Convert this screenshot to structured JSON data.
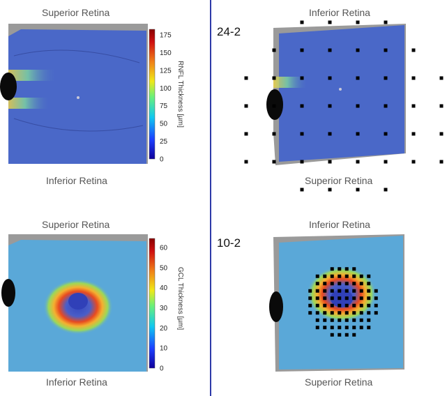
{
  "labels": {
    "top_left_top": "Superior Retina",
    "top_left_bottom": "Inferior Retina",
    "top_right_top": "Inferior Retina",
    "top_right_bottom": "Superior Retina",
    "bottom_left_top": "Superior Retina",
    "bottom_left_bottom": "Inferior Retina",
    "bottom_right_top": "Inferior Retina",
    "bottom_right_bottom": "Superior Retina"
  },
  "test_patterns": {
    "top": "24-2",
    "bottom": "10-2"
  },
  "colorbars": {
    "rnfl": {
      "title": "RNFL Thickness [µm]",
      "ticks": [
        "0",
        "25",
        "50",
        "75",
        "100",
        "125",
        "150",
        "175"
      ]
    },
    "gcl": {
      "title": "GCL Thickness [µm]",
      "ticks": [
        "0",
        "10",
        "20",
        "30",
        "40",
        "50",
        "60"
      ]
    }
  },
  "colors": {
    "divider": "#2e3aa8",
    "map_blue": "#4a68c8",
    "stimulus": "#000000"
  }
}
